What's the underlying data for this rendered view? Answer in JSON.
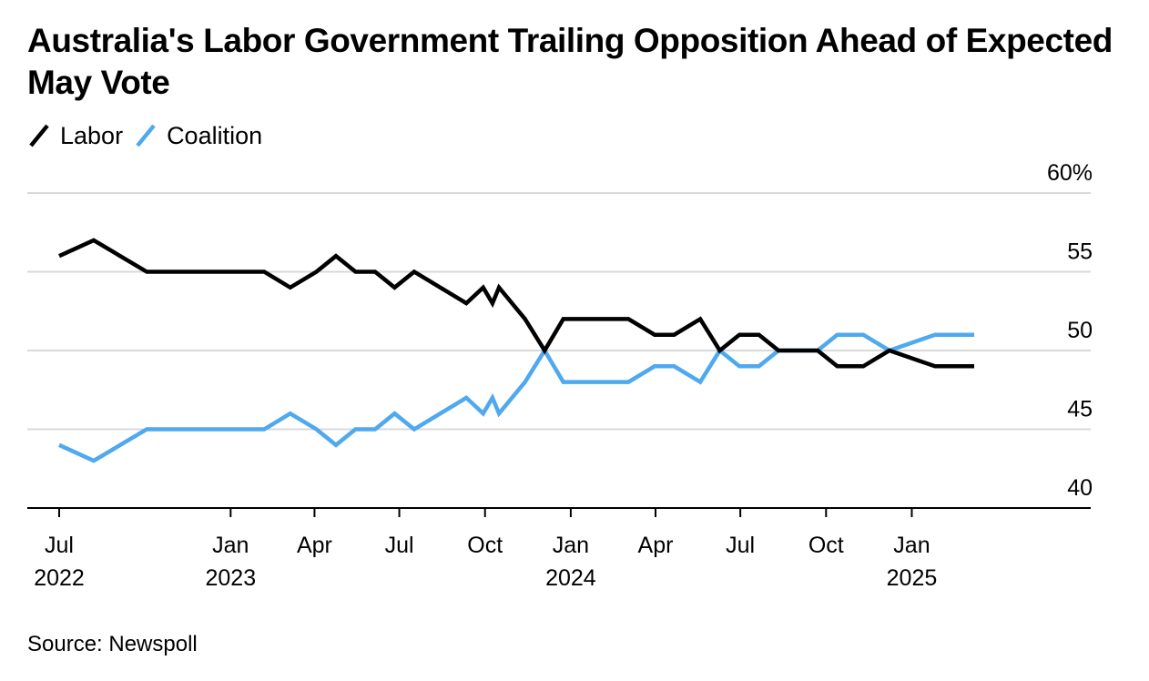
{
  "title": "Australia's Labor Government Trailing Opposition Ahead of Expected May Vote",
  "source": "Source: Newspoll",
  "colors": {
    "labor": "#000000",
    "coalition": "#4fa9ee",
    "grid": "#d9d9d9",
    "axis": "#000000"
  },
  "chart_data": {
    "type": "line",
    "title": "Australia's Labor Government Trailing Opposition Ahead of Expected May Vote",
    "xlabel": "",
    "ylabel": "",
    "ylim": [
      40,
      60
    ],
    "y_ticks": [
      40,
      45,
      50,
      55,
      60
    ],
    "y_tick_labels": [
      "40",
      "45",
      "50",
      "55",
      "60%"
    ],
    "xlim": [
      "2022-07-01",
      "2025-06-01"
    ],
    "x_ticks": [
      {
        "date": "2022-07-01",
        "month": "Jul",
        "year": "2022"
      },
      {
        "date": "2023-01-01",
        "month": "Jan",
        "year": "2023"
      },
      {
        "date": "2023-04-01",
        "month": "Apr",
        "year": ""
      },
      {
        "date": "2023-07-01",
        "month": "Jul",
        "year": ""
      },
      {
        "date": "2023-10-01",
        "month": "Oct",
        "year": ""
      },
      {
        "date": "2024-01-01",
        "month": "Jan",
        "year": "2024"
      },
      {
        "date": "2024-04-01",
        "month": "Apr",
        "year": ""
      },
      {
        "date": "2024-07-01",
        "month": "Jul",
        "year": ""
      },
      {
        "date": "2024-10-01",
        "month": "Oct",
        "year": ""
      },
      {
        "date": "2025-01-01",
        "month": "Jan",
        "year": "2025"
      }
    ],
    "grid": true,
    "legend_position": "top-left",
    "series": [
      {
        "name": "Labor",
        "points": [
          [
            "2022-07-01",
            56
          ],
          [
            "2022-08-07",
            57
          ],
          [
            "2022-10-03",
            55
          ],
          [
            "2022-11-07",
            55
          ],
          [
            "2022-12-12",
            55
          ],
          [
            "2023-02-06",
            55
          ],
          [
            "2023-03-06",
            54
          ],
          [
            "2023-04-03",
            55
          ],
          [
            "2023-04-24",
            56
          ],
          [
            "2023-05-15",
            55
          ],
          [
            "2023-06-05",
            55
          ],
          [
            "2023-06-26",
            54
          ],
          [
            "2023-07-17",
            55
          ],
          [
            "2023-08-14",
            54
          ],
          [
            "2023-09-11",
            53
          ],
          [
            "2023-09-29",
            54
          ],
          [
            "2023-10-09",
            53
          ],
          [
            "2023-10-16",
            54
          ],
          [
            "2023-11-13",
            52
          ],
          [
            "2023-12-04",
            50
          ],
          [
            "2023-12-24",
            52
          ],
          [
            "2024-02-04",
            52
          ],
          [
            "2024-03-03",
            52
          ],
          [
            "2024-03-31",
            51
          ],
          [
            "2024-04-21",
            51
          ],
          [
            "2024-05-19",
            52
          ],
          [
            "2024-06-09",
            50
          ],
          [
            "2024-06-30",
            51
          ],
          [
            "2024-07-21",
            51
          ],
          [
            "2024-08-11",
            50
          ],
          [
            "2024-09-22",
            50
          ],
          [
            "2024-10-13",
            49
          ],
          [
            "2024-11-10",
            49
          ],
          [
            "2024-12-08",
            50
          ],
          [
            "2025-01-26",
            49
          ],
          [
            "2025-03-09",
            49
          ]
        ]
      },
      {
        "name": "Coalition",
        "points": [
          [
            "2022-07-01",
            44
          ],
          [
            "2022-08-07",
            43
          ],
          [
            "2022-10-03",
            45
          ],
          [
            "2022-11-07",
            45
          ],
          [
            "2022-12-12",
            45
          ],
          [
            "2023-02-06",
            45
          ],
          [
            "2023-03-06",
            46
          ],
          [
            "2023-04-03",
            45
          ],
          [
            "2023-04-24",
            44
          ],
          [
            "2023-05-15",
            45
          ],
          [
            "2023-06-05",
            45
          ],
          [
            "2023-06-26",
            46
          ],
          [
            "2023-07-17",
            45
          ],
          [
            "2023-08-14",
            46
          ],
          [
            "2023-09-11",
            47
          ],
          [
            "2023-09-29",
            46
          ],
          [
            "2023-10-09",
            47
          ],
          [
            "2023-10-16",
            46
          ],
          [
            "2023-11-13",
            48
          ],
          [
            "2023-12-04",
            50
          ],
          [
            "2023-12-24",
            48
          ],
          [
            "2024-02-04",
            48
          ],
          [
            "2024-03-03",
            48
          ],
          [
            "2024-03-31",
            49
          ],
          [
            "2024-04-21",
            49
          ],
          [
            "2024-05-19",
            48
          ],
          [
            "2024-06-09",
            50
          ],
          [
            "2024-06-30",
            49
          ],
          [
            "2024-07-21",
            49
          ],
          [
            "2024-08-11",
            50
          ],
          [
            "2024-09-22",
            50
          ],
          [
            "2024-10-13",
            51
          ],
          [
            "2024-11-10",
            51
          ],
          [
            "2024-12-08",
            50
          ],
          [
            "2025-01-26",
            51
          ],
          [
            "2025-03-09",
            51
          ]
        ]
      }
    ]
  }
}
